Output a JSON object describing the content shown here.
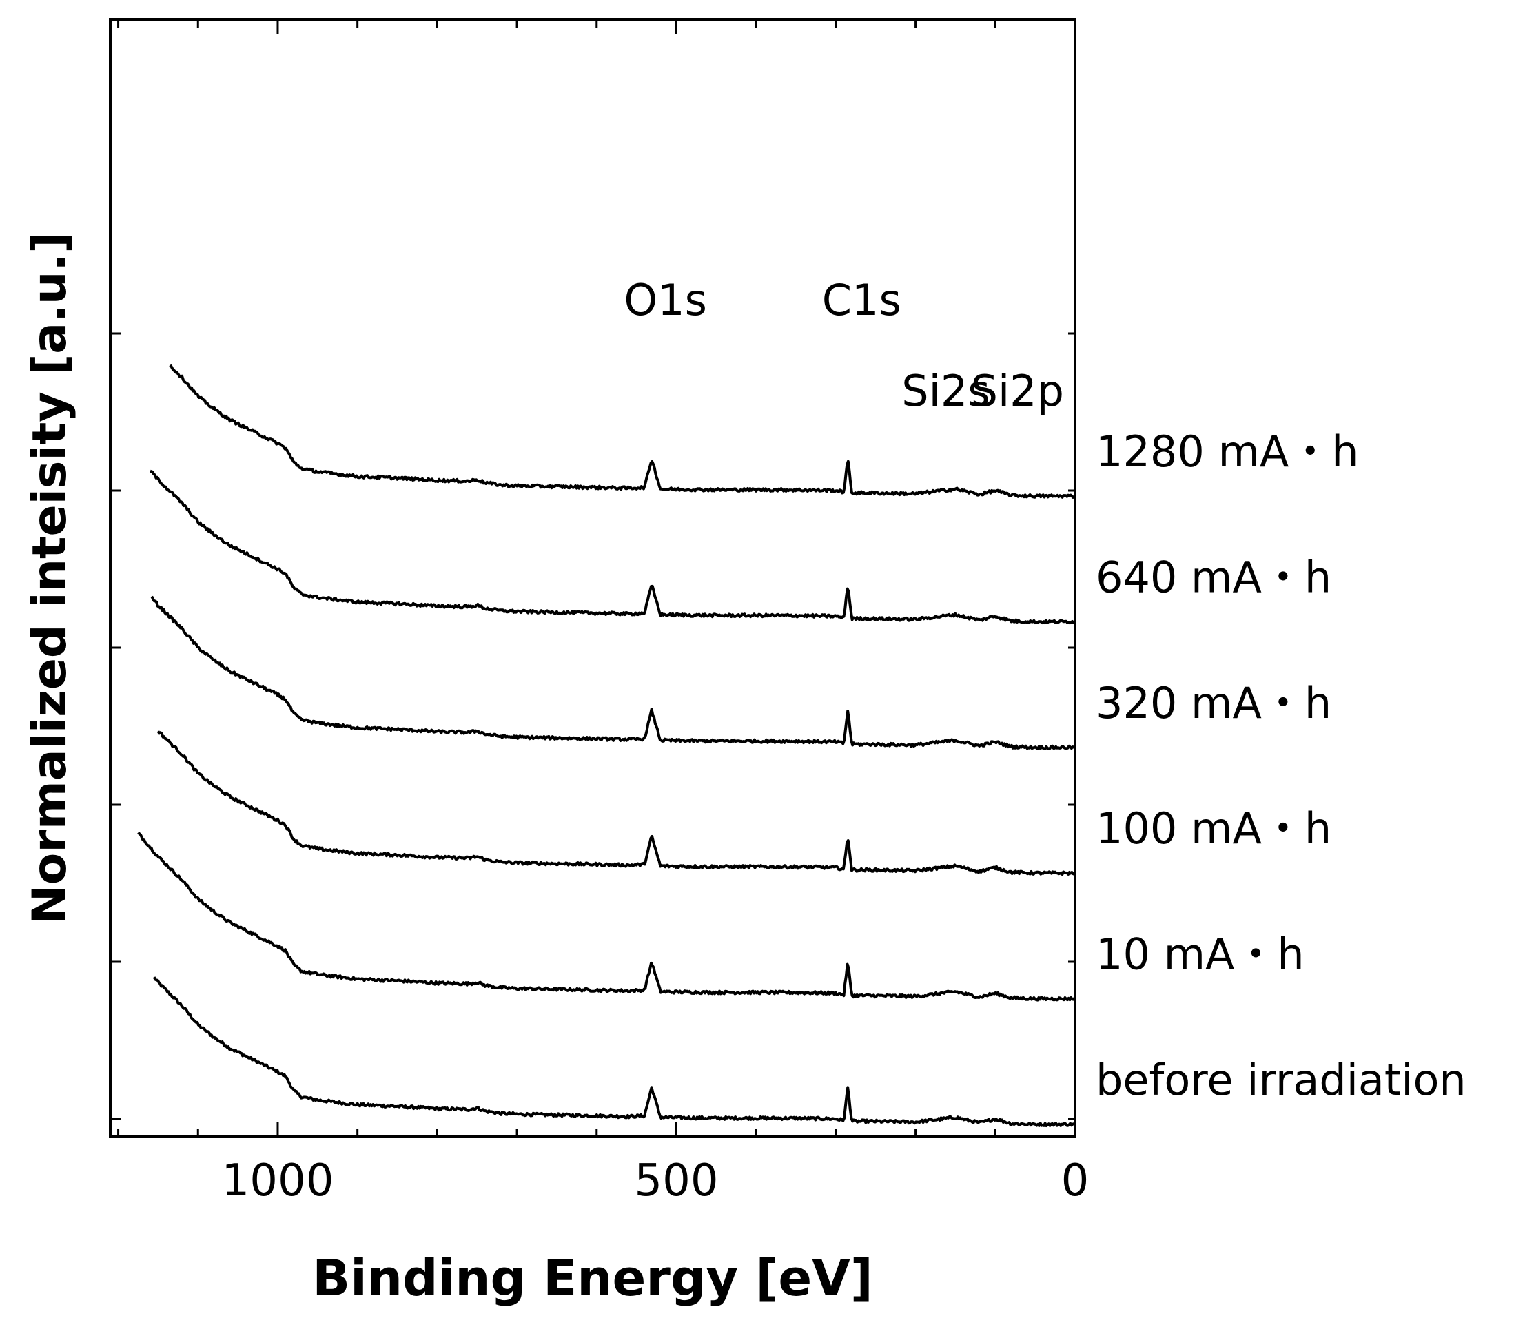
{
  "chart_data": {
    "type": "line",
    "title": "",
    "xlabel": "Binding Energy [eV]",
    "ylabel": "Normalized inteisity [a.u.]",
    "xlim": [
      1210,
      0
    ],
    "ylim": [
      0,
      7
    ],
    "x_ticks": [
      1000,
      500,
      0
    ],
    "x_tick_labels": [
      "1000",
      "500",
      "0"
    ],
    "y_ticks": [
      0,
      1,
      2,
      3,
      4,
      5
    ],
    "grid": false,
    "legend": "right of each trace",
    "offset_step": 0.8,
    "peak_labels": [
      {
        "text": "O1s",
        "energy": 531
      },
      {
        "text": "C1s",
        "energy": 285
      },
      {
        "text": "Si2s",
        "energy": 150
      },
      {
        "text": "Si2p",
        "energy": 100
      }
    ],
    "spectrum_profile": {
      "energy": [
        1180,
        1150,
        1120,
        1100,
        1080,
        1060,
        1040,
        1020,
        1000,
        990,
        980,
        970,
        950,
        900,
        850,
        800,
        760,
        750,
        740,
        720,
        700,
        650,
        600,
        560,
        540,
        531,
        520,
        500,
        450,
        400,
        350,
        300,
        290,
        285,
        280,
        260,
        200,
        150,
        120,
        100,
        80,
        50,
        0
      ],
      "intensity": [
        1.05,
        0.87,
        0.72,
        0.6,
        0.52,
        0.45,
        0.4,
        0.35,
        0.3,
        0.27,
        0.18,
        0.14,
        0.12,
        0.09,
        0.08,
        0.065,
        0.06,
        0.07,
        0.05,
        0.035,
        0.03,
        0.025,
        0.02,
        0.015,
        0.02,
        0.2,
        0.01,
        0.008,
        0.005,
        0.005,
        0.004,
        0.0,
        -0.01,
        0.2,
        -0.015,
        -0.015,
        -0.02,
        0.01,
        -0.025,
        0.0,
        -0.03,
        -0.035,
        -0.035
      ]
    },
    "series": [
      {
        "name": "before irradiation",
        "offset": 0.0
      },
      {
        "name": "10 mA・h",
        "offset": 0.8
      },
      {
        "name": "100 mA・h",
        "offset": 1.6
      },
      {
        "name": "320 mA・h",
        "offset": 2.4
      },
      {
        "name": "640 mA・h",
        "offset": 3.2
      },
      {
        "name": "1280 mA・h",
        "offset": 4.0
      }
    ]
  }
}
